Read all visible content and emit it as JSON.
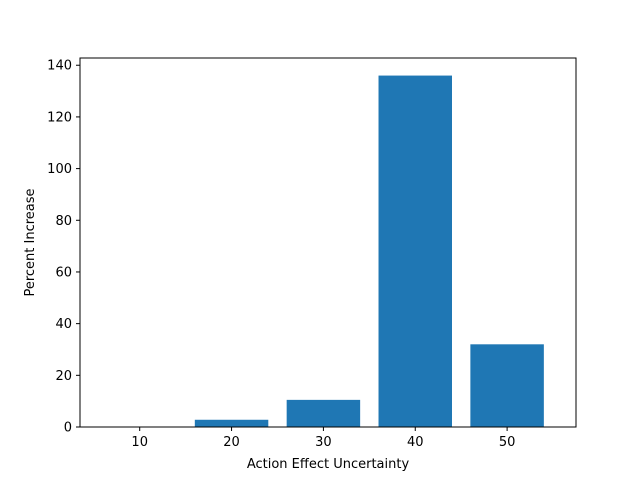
{
  "chart_data": {
    "type": "bar",
    "title": "",
    "xlabel": "Action Effect Uncertainty",
    "ylabel": "Percent Increase",
    "categories": [
      "10",
      "20",
      "30",
      "40",
      "50"
    ],
    "x": [
      10,
      20,
      30,
      40,
      50
    ],
    "values": [
      0,
      2.8,
      10.5,
      136,
      32
    ],
    "xlim": [
      3.5,
      57.5
    ],
    "ylim": [
      0,
      142.8
    ],
    "yticks": [
      0,
      20,
      40,
      60,
      80,
      100,
      120,
      140
    ],
    "grid": false,
    "legend": "none",
    "bar_color": "#1f77b4"
  }
}
